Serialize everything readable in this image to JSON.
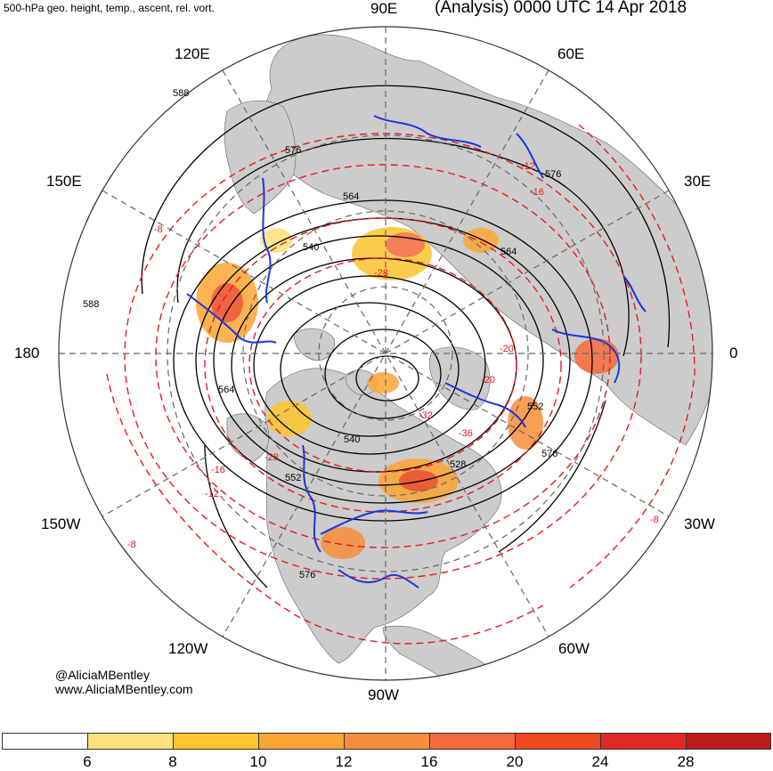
{
  "header": {
    "left_title": "500-hPa geo. height, temp., ascent, rel. vort.",
    "right_title": "(Analysis) 0000 UTC 14 Apr 2018"
  },
  "longitude_labels": {
    "e90": "90E",
    "e120": "120E",
    "e60": "60E",
    "e150": "150E",
    "e30": "30E",
    "d180": "180",
    "d0": "0",
    "w150": "150W",
    "w30": "30W",
    "w120": "120W",
    "w60": "60W",
    "w90": "90W"
  },
  "height_contour_labels": [
    "588",
    "576",
    "564",
    "540",
    "564",
    "576",
    "588",
    "564",
    "540",
    "528",
    "552",
    "576",
    "576",
    "552"
  ],
  "temperature_contour_labels": [
    "-8",
    "-12",
    "-16",
    "-20",
    "-8",
    "-16",
    "-20",
    "-28",
    "-36",
    "-12",
    "-8",
    "-28",
    "-32"
  ],
  "credit": {
    "handle": "@AliciaMBentley",
    "website": "www.AliciaMBentley.com"
  },
  "colorbar": {
    "ticks": [
      "6",
      "8",
      "10",
      "12",
      "16",
      "20",
      "24",
      "28"
    ],
    "colors": [
      "#ffffff",
      "#fde17a",
      "#fcc52d",
      "#fba533",
      "#f88d3a",
      "#f56a3a",
      "#ef4a1f",
      "#df2a25",
      "#bf1b1b"
    ]
  },
  "colors": {
    "land": "#cccccc",
    "ocean": "#ffffff",
    "height_contours": "#000000",
    "temperature_contours": "#e8191c",
    "ascent_contours": "#1a36e0",
    "graticule": "#666666"
  }
}
